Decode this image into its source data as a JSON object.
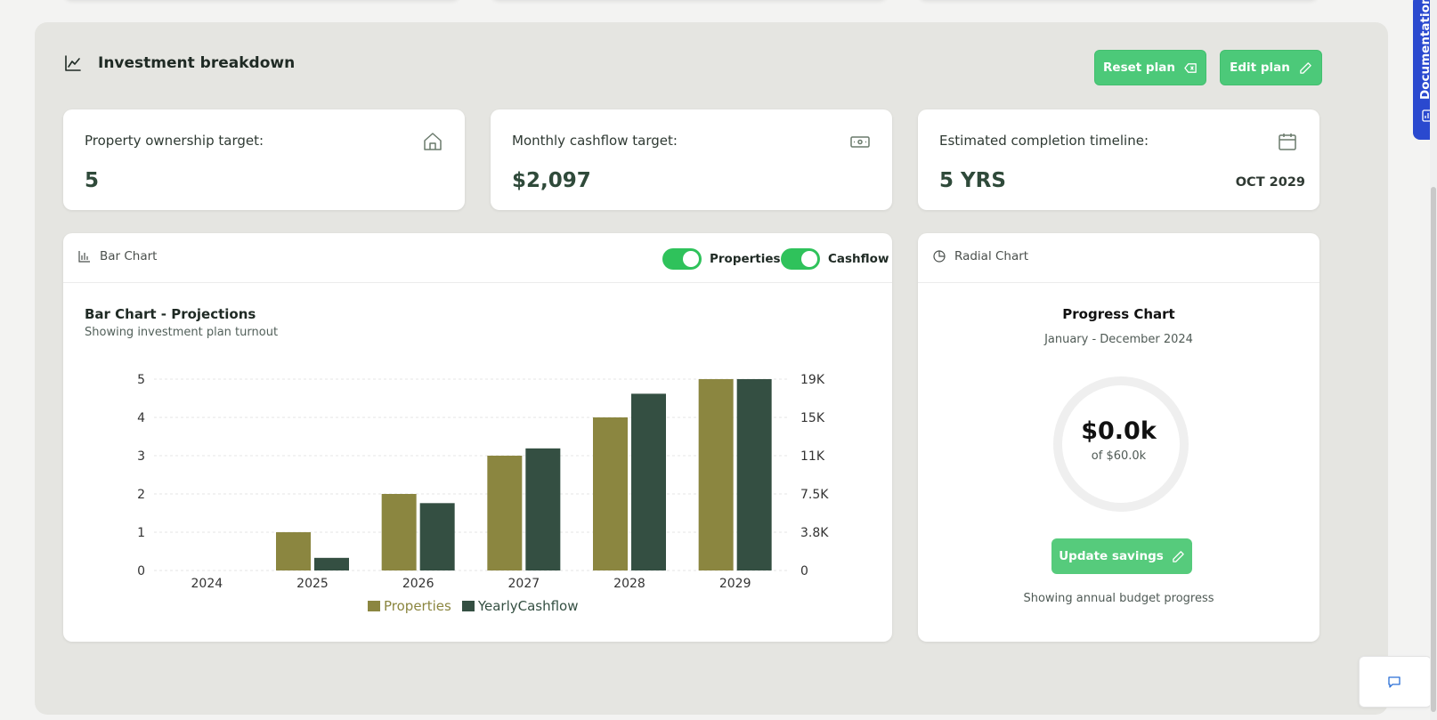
{
  "section": {
    "title": "Investment breakdown",
    "reset_label": "Reset plan",
    "edit_label": "Edit plan"
  },
  "stats": {
    "properties": {
      "label": "Property ownership target:",
      "value": "5"
    },
    "cashflow": {
      "label": "Monthly cashflow target:",
      "value": "$2,097"
    },
    "timeline": {
      "label": "Estimated completion timeline:",
      "value": "5 YRS",
      "date": "OCT 2029"
    }
  },
  "bar_card": {
    "tab_label": "Bar Chart",
    "toggle_properties": "Properties",
    "toggle_cashflow": "Cashflow",
    "title": "Bar Chart - Projections",
    "subtitle": "Showing investment plan turnout"
  },
  "chart_data": {
    "type": "bar",
    "title": "Bar Chart - Projections",
    "categories": [
      "2024",
      "2025",
      "2026",
      "2027",
      "2028",
      "2029"
    ],
    "series": [
      {
        "name": "Properties",
        "axis": "left",
        "color": "#8b8640",
        "values": [
          0,
          1,
          2,
          3,
          4,
          5
        ]
      },
      {
        "name": "YearlyCashflow",
        "axis": "right",
        "color": "#344f42",
        "values": [
          0,
          1258,
          6713,
          12168,
          17616,
          19071
        ]
      }
    ],
    "y_left": {
      "ticks": [
        "0",
        "1",
        "2",
        "3",
        "4",
        "5"
      ],
      "range": [
        0,
        5
      ]
    },
    "y_right": {
      "ticks": [
        "0",
        "3.8K",
        "7.5K",
        "11K",
        "15K",
        "19K"
      ],
      "range": [
        0,
        19071
      ]
    },
    "grid": true,
    "legend_position": "bottom"
  },
  "radial_card": {
    "tab_label": "Radial Chart",
    "title": "Progress Chart",
    "subtitle": "January - December 2024",
    "value": "$0.0k",
    "target": "of $60.0k",
    "progress": 0,
    "button_label": "Update savings",
    "footer": "Showing annual budget progress"
  },
  "side_tab": {
    "label": "Documentation"
  },
  "colors": {
    "accent": "#4cc979",
    "properties": "#8b8640",
    "cashflow": "#344f42",
    "doc_tab": "#2a49cf"
  }
}
